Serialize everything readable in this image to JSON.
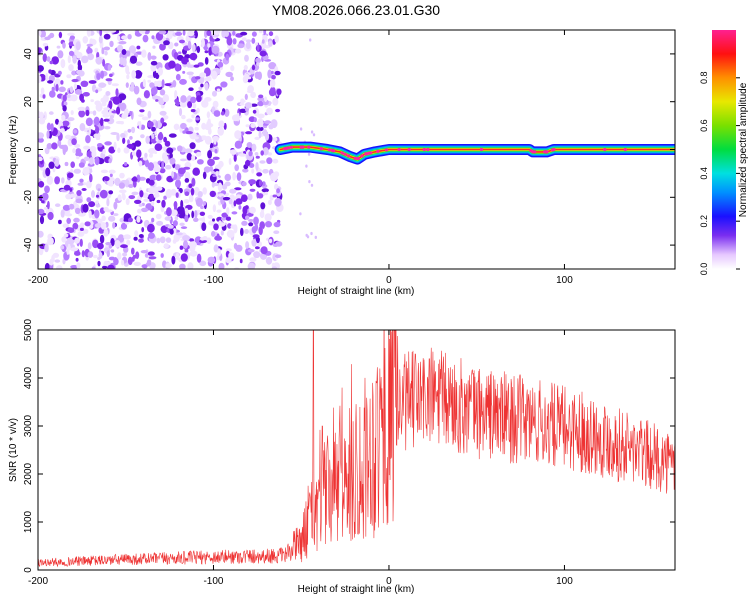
{
  "title": "YM08.2026.066.23.01.G30",
  "chart_data": [
    {
      "type": "heatmap",
      "xlabel": "Height of straight line (km)",
      "ylabel": "Frequency (Hz)",
      "xlim": [
        -200,
        163
      ],
      "ylim": [
        -50,
        50
      ],
      "x_ticks": [
        -200,
        -100,
        0,
        100
      ],
      "x_tick_labels": [
        "-200",
        "-100",
        "0",
        "100"
      ],
      "y_ticks": [
        -40,
        -20,
        0,
        20,
        40
      ],
      "y_tick_labels": [
        "-40",
        "-20",
        "0",
        "20",
        "40"
      ],
      "noise_region_x": [
        -200,
        -62
      ],
      "signal_start_x": -62,
      "signal_ridge": [
        {
          "x": -62,
          "f": 0
        },
        {
          "x": -55,
          "f": 1
        },
        {
          "x": -45,
          "f": 1
        },
        {
          "x": -35,
          "f": 0
        },
        {
          "x": -28,
          "f": -1
        },
        {
          "x": -22,
          "f": -3
        },
        {
          "x": -18,
          "f": -4
        },
        {
          "x": -14,
          "f": -2
        },
        {
          "x": -8,
          "f": -1
        },
        {
          "x": 0,
          "f": 0
        },
        {
          "x": 20,
          "f": 0
        },
        {
          "x": 80,
          "f": 0
        },
        {
          "x": 82,
          "f": -1
        },
        {
          "x": 90,
          "f": -1
        },
        {
          "x": 94,
          "f": 0
        },
        {
          "x": 163,
          "f": 0
        }
      ],
      "colorbar": {
        "label": "Normalized spectral amplitude",
        "range": [
          0,
          1
        ],
        "ticks": [
          0.0,
          0.2,
          0.4,
          0.6,
          0.8
        ],
        "tick_labels": [
          "0.0",
          "0.2",
          "0.4",
          "0.6",
          "0.8"
        ]
      }
    },
    {
      "type": "line",
      "xlabel": "Height of straight line (km)",
      "ylabel": "SNR (10 * v/v)",
      "xlim": [
        -200,
        163
      ],
      "ylim": [
        0,
        5000
      ],
      "x_ticks": [
        -200,
        -100,
        0,
        100
      ],
      "x_tick_labels": [
        "-200",
        "-100",
        "0",
        "100"
      ],
      "y_ticks": [
        0,
        1000,
        2000,
        3000,
        4000,
        5000
      ],
      "y_tick_labels": [
        "0",
        "1000",
        "2000",
        "3000",
        "4000",
        "5000"
      ],
      "color": "#ee3333",
      "envelope": [
        {
          "x": -200,
          "y": 150
        },
        {
          "x": -150,
          "y": 220
        },
        {
          "x": -100,
          "y": 270
        },
        {
          "x": -60,
          "y": 300
        },
        {
          "x": -50,
          "y": 600
        },
        {
          "x": -40,
          "y": 1500
        },
        {
          "x": -30,
          "y": 1700
        },
        {
          "x": -20,
          "y": 2000
        },
        {
          "x": -10,
          "y": 2500
        },
        {
          "x": 0,
          "y": 3200
        },
        {
          "x": 10,
          "y": 3500
        },
        {
          "x": 25,
          "y": 3600
        },
        {
          "x": 50,
          "y": 3300
        },
        {
          "x": 80,
          "y": 3100
        },
        {
          "x": 110,
          "y": 2900
        },
        {
          "x": 140,
          "y": 2500
        },
        {
          "x": 163,
          "y": 2200
        }
      ],
      "spikes": [
        {
          "x": -43,
          "y": 5000
        },
        {
          "x": -38,
          "y": 3000
        },
        {
          "x": -7,
          "y": 3900
        },
        {
          "x": 15,
          "y": 4500
        },
        {
          "x": 23,
          "y": 4400
        }
      ]
    }
  ]
}
